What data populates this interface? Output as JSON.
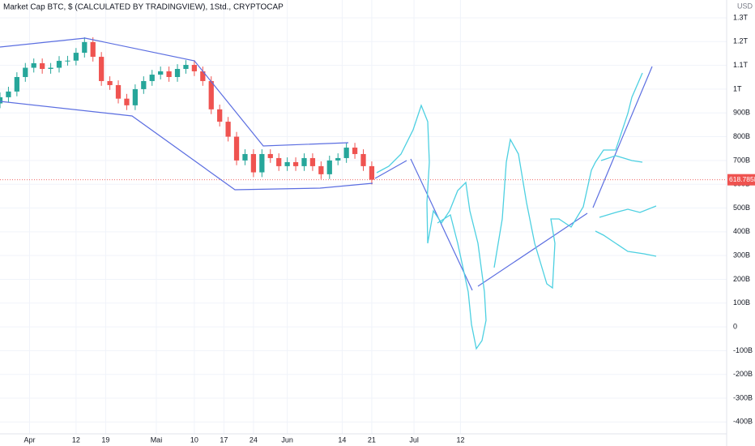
{
  "chart_data": {
    "type": "candlestick",
    "title": "Market Cap BTC, $ (CALCULATED BY TRADINGVIEW), 1Std., CRYPTOCAP",
    "currency": "USD",
    "up_color": "#26a69a",
    "down_color": "#ef5350",
    "grid": true,
    "x": [
      "03-25",
      "03-27",
      "03-29",
      "03-31",
      "04-02",
      "04-04",
      "04-06",
      "04-08",
      "04-10",
      "04-12",
      "04-14",
      "04-16",
      "04-18",
      "04-20",
      "04-22",
      "04-24",
      "04-26",
      "04-28",
      "04-30",
      "05-02",
      "05-04",
      "05-06",
      "05-08",
      "05-10",
      "05-12",
      "05-14",
      "05-16",
      "05-18",
      "05-20",
      "05-22",
      "05-24",
      "05-26",
      "05-28",
      "05-30",
      "06-01",
      "06-03",
      "06-05",
      "06-07",
      "06-09",
      "06-11",
      "06-13",
      "06-15",
      "06-17",
      "06-19",
      "06-21"
    ],
    "open": [
      940,
      966,
      990,
      1051,
      1090,
      1109,
      1085,
      1090,
      1119,
      1120,
      1153,
      1198,
      1136,
      1034,
      1017,
      960,
      932,
      1000,
      1034,
      1061,
      1075,
      1051,
      1085,
      1102,
      1075,
      1034,
      915,
      863,
      800,
      700,
      727,
      650,
      727,
      710,
      676,
      693,
      676,
      710,
      676,
      642,
      700,
      710,
      754,
      727,
      676
    ],
    "high": [
      986,
      1010,
      1071,
      1110,
      1129,
      1129,
      1110,
      1139,
      1140,
      1173,
      1218,
      1218,
      1156,
      1054,
      1037,
      980,
      1020,
      1054,
      1081,
      1095,
      1095,
      1105,
      1122,
      1122,
      1095,
      1054,
      935,
      883,
      820,
      747,
      747,
      747,
      747,
      730,
      713,
      713,
      730,
      730,
      696,
      720,
      730,
      774,
      774,
      747,
      696
    ],
    "low": [
      920,
      946,
      970,
      1031,
      1070,
      1065,
      1065,
      1070,
      1099,
      1100,
      1133,
      1116,
      1014,
      997,
      940,
      912,
      912,
      980,
      1014,
      1041,
      1031,
      1031,
      1065,
      1055,
      1014,
      895,
      843,
      780,
      680,
      680,
      630,
      630,
      690,
      656,
      656,
      656,
      656,
      656,
      622,
      622,
      680,
      690,
      707,
      656,
      599
    ],
    "close": [
      966,
      990,
      1051,
      1090,
      1109,
      1085,
      1090,
      1119,
      1120,
      1153,
      1198,
      1136,
      1034,
      1017,
      960,
      932,
      1000,
      1034,
      1061,
      1075,
      1051,
      1085,
      1102,
      1075,
      1034,
      915,
      863,
      800,
      700,
      727,
      650,
      727,
      710,
      676,
      693,
      676,
      710,
      676,
      642,
      700,
      710,
      754,
      727,
      676,
      619
    ],
    "last_price": {
      "value": 618.785,
      "label": "618.785B"
    },
    "xlim": [
      "03-25",
      "09-13"
    ],
    "xticks": [
      {
        "value": "04-01",
        "label": "Apr"
      },
      {
        "value": "04-12",
        "label": "12"
      },
      {
        "value": "04-19",
        "label": "19"
      },
      {
        "value": "05-01",
        "label": "Mai"
      },
      {
        "value": "05-10",
        "label": "10"
      },
      {
        "value": "05-17",
        "label": "17"
      },
      {
        "value": "05-24",
        "label": "24"
      },
      {
        "value": "06-01",
        "label": "Jun"
      },
      {
        "value": "06-14",
        "label": "14"
      },
      {
        "value": "06-21",
        "label": "21"
      },
      {
        "value": "07-01",
        "label": "Jul"
      },
      {
        "value": "07-12",
        "label": "12"
      }
    ],
    "ylim": [
      -450,
      1375
    ],
    "yticks": [
      {
        "value": 1300,
        "label": "1.3T"
      },
      {
        "value": 1200,
        "label": "1.2T"
      },
      {
        "value": 1100,
        "label": "1.1T"
      },
      {
        "value": 1000,
        "label": "1T"
      },
      {
        "value": 900,
        "label": "900B"
      },
      {
        "value": 800,
        "label": "800B"
      },
      {
        "value": 700,
        "label": "700B"
      },
      {
        "value": 600,
        "label": "600B"
      },
      {
        "value": 500,
        "label": "500B"
      },
      {
        "value": 400,
        "label": "400B"
      },
      {
        "value": 300,
        "label": "300B"
      },
      {
        "value": 200,
        "label": "200B"
      },
      {
        "value": 100,
        "label": "100B"
      },
      0,
      {
        "value": -100,
        "label": "-100B"
      },
      {
        "value": -200,
        "label": "-200B"
      },
      {
        "value": -300,
        "label": "-300B"
      },
      {
        "value": -400,
        "label": "-400B"
      }
    ]
  }
}
